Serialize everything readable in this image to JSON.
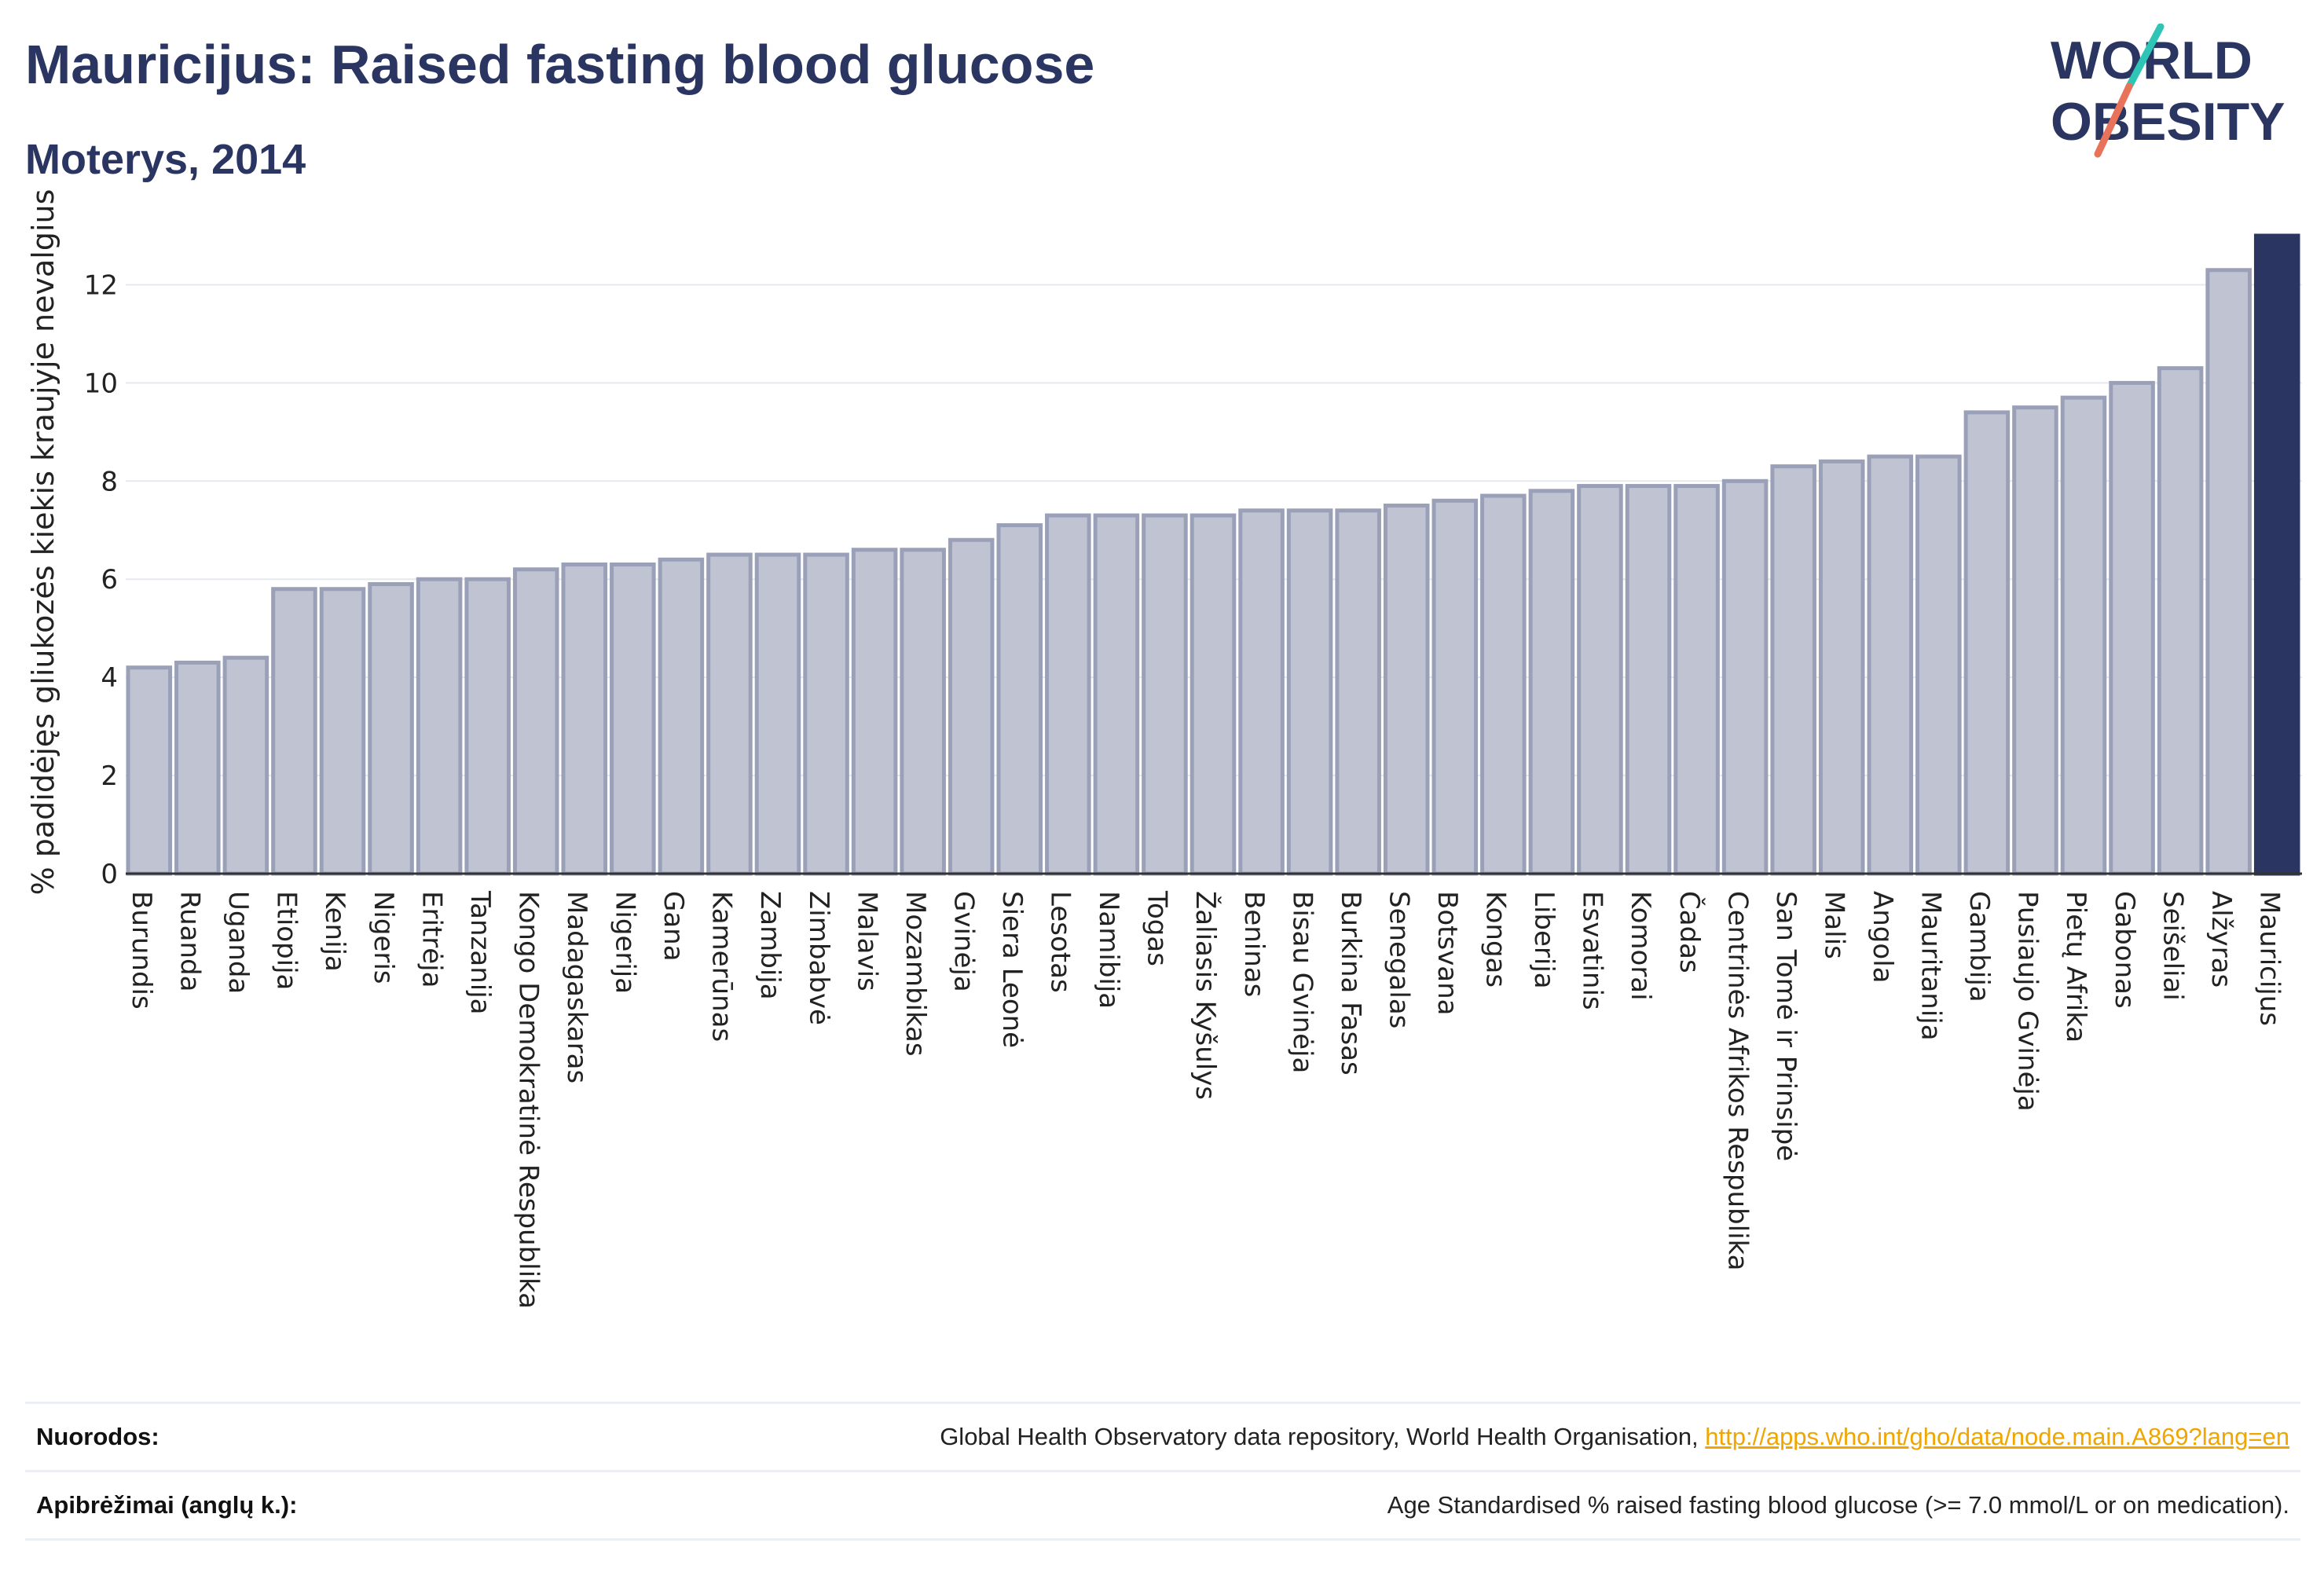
{
  "header": {
    "title": "Mauricijus: Raised fasting blood glucose",
    "subtitle": "Moterys, 2014"
  },
  "logo": {
    "line1": "WORLD",
    "line2": "OBESITY",
    "accent_colors": [
      "#2ec4b6",
      "#e8735a"
    ]
  },
  "colors": {
    "bar": "#bfc3d2",
    "bar_edge": "#9aa0b8",
    "highlight": "#2a3561",
    "text_dark": "#2a3561",
    "link": "#f0a500"
  },
  "chart_data": {
    "type": "bar",
    "title": "Mauricijus: Raised fasting blood glucose",
    "subtitle": "Moterys, 2014",
    "ylabel": "% padidėjęs gliukozės kiekis kraujyje nevalgius",
    "xlabel": "",
    "ylim": [
      0,
      13
    ],
    "yticks": [
      0,
      2,
      4,
      6,
      8,
      10,
      12
    ],
    "grid": true,
    "highlight": "Mauricijus",
    "categories": [
      "Burundis",
      "Ruanda",
      "Uganda",
      "Etiopija",
      "Kenija",
      "Nigeris",
      "Eritrėja",
      "Tanzanija",
      "Kongo Demokratinė Respublika",
      "Madagaskaras",
      "Nigerija",
      "Gana",
      "Kamerūnas",
      "Zambija",
      "Zimbabvė",
      "Malavis",
      "Mozambikas",
      "Gvinėja",
      "Siera Leonė",
      "Lesotas",
      "Namibija",
      "Togas",
      "Žaliasis Kyšulys",
      "Beninas",
      "Bisau Gvinėja",
      "Burkina Fasas",
      "Senegalas",
      "Botsvana",
      "Kongas",
      "Liberija",
      "Esvatinis",
      "Komorai",
      "Čadas",
      "Centrinės Afrikos Respublika",
      "San Tomė ir Prinsipė",
      "Malis",
      "Angola",
      "Mauritanija",
      "Gambija",
      "Pusiaujo Gvinėja",
      "Pietų Afrika",
      "Gabonas",
      "Seišeliai",
      "Alžyras",
      "Mauricijus"
    ],
    "values": [
      4.2,
      4.3,
      4.4,
      5.8,
      5.8,
      5.9,
      6.0,
      6.0,
      6.2,
      6.3,
      6.3,
      6.4,
      6.5,
      6.5,
      6.5,
      6.6,
      6.6,
      6.8,
      7.1,
      7.3,
      7.3,
      7.3,
      7.3,
      7.4,
      7.4,
      7.4,
      7.5,
      7.6,
      7.7,
      7.8,
      7.9,
      7.9,
      7.9,
      8.0,
      8.3,
      8.4,
      8.5,
      8.5,
      9.4,
      9.5,
      9.7,
      10.0,
      10.3,
      12.3,
      13.0
    ]
  },
  "footer": {
    "sources_label": "Nuorodos:",
    "sources_text": "Global Health Observatory data repository, World Health Organisation, ",
    "sources_link": "http://apps.who.int/gho/data/node.main.A869?lang=en",
    "definitions_label": "Apibrėžimai (anglų k.):",
    "definitions_text": "Age Standardised % raised fasting blood glucose (>= 7.0 mmol/L or on medication)."
  }
}
